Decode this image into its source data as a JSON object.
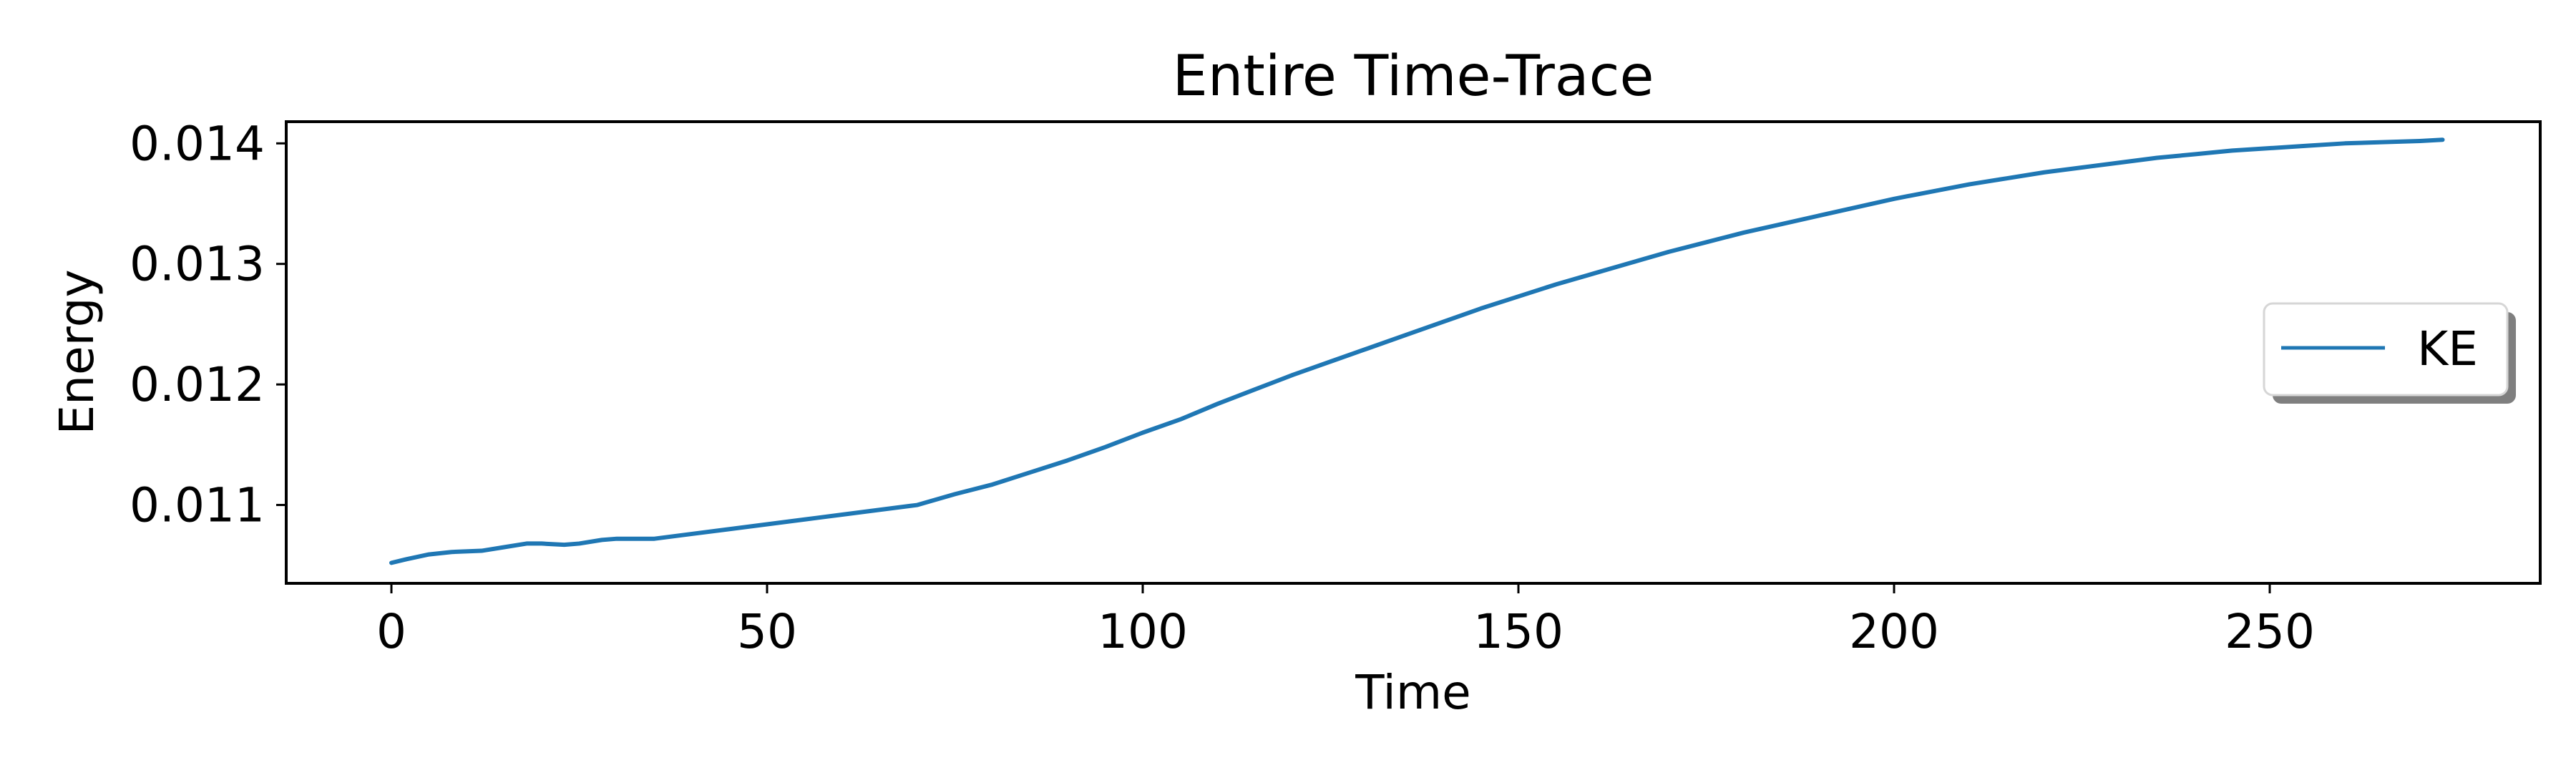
{
  "chart_data": {
    "type": "line",
    "title": "Entire Time-Trace",
    "xlabel": "Time",
    "ylabel": "Energy",
    "xlim": [
      -14,
      286
    ],
    "ylim": [
      0.01035,
      0.01418
    ],
    "xticks": [
      0,
      50,
      100,
      150,
      200,
      250
    ],
    "xtick_labels": [
      "0",
      "50",
      "100",
      "150",
      "200",
      "250"
    ],
    "yticks": [
      0.011,
      0.012,
      0.013,
      0.014
    ],
    "ytick_labels": [
      "0.011",
      "0.012",
      "0.013",
      "0.014"
    ],
    "grid": false,
    "legend": {
      "position": "center-right",
      "entries": [
        "KE"
      ]
    },
    "series": [
      {
        "name": "KE",
        "color": "#1f77b4",
        "x": [
          0,
          2,
          5,
          8,
          12,
          15,
          18,
          20,
          23,
          25,
          28,
          30,
          35,
          40,
          45,
          50,
          55,
          60,
          65,
          70,
          75,
          80,
          85,
          90,
          95,
          100,
          105,
          110,
          115,
          120,
          125,
          130,
          135,
          140,
          145,
          150,
          155,
          160,
          165,
          170,
          175,
          180,
          185,
          190,
          195,
          200,
          205,
          210,
          215,
          220,
          225,
          230,
          235,
          240,
          245,
          250,
          255,
          260,
          265,
          270,
          273
        ],
        "y": [
          0.01052,
          0.01055,
          0.01059,
          0.01061,
          0.01062,
          0.01065,
          0.01068,
          0.01068,
          0.01067,
          0.01068,
          0.01071,
          0.01072,
          0.01072,
          0.01076,
          0.0108,
          0.01084,
          0.01088,
          0.01092,
          0.01096,
          0.011,
          0.01109,
          0.01117,
          0.01127,
          0.01137,
          0.01148,
          0.0116,
          0.01171,
          0.01184,
          0.01196,
          0.01208,
          0.01219,
          0.0123,
          0.01241,
          0.01252,
          0.01263,
          0.01273,
          0.01283,
          0.01292,
          0.01301,
          0.0131,
          0.01318,
          0.01326,
          0.01333,
          0.0134,
          0.01347,
          0.01354,
          0.0136,
          0.01366,
          0.01371,
          0.01376,
          0.0138,
          0.01384,
          0.01388,
          0.01391,
          0.01394,
          0.01396,
          0.01398,
          0.014,
          0.01401,
          0.01402,
          0.01403
        ]
      }
    ]
  }
}
